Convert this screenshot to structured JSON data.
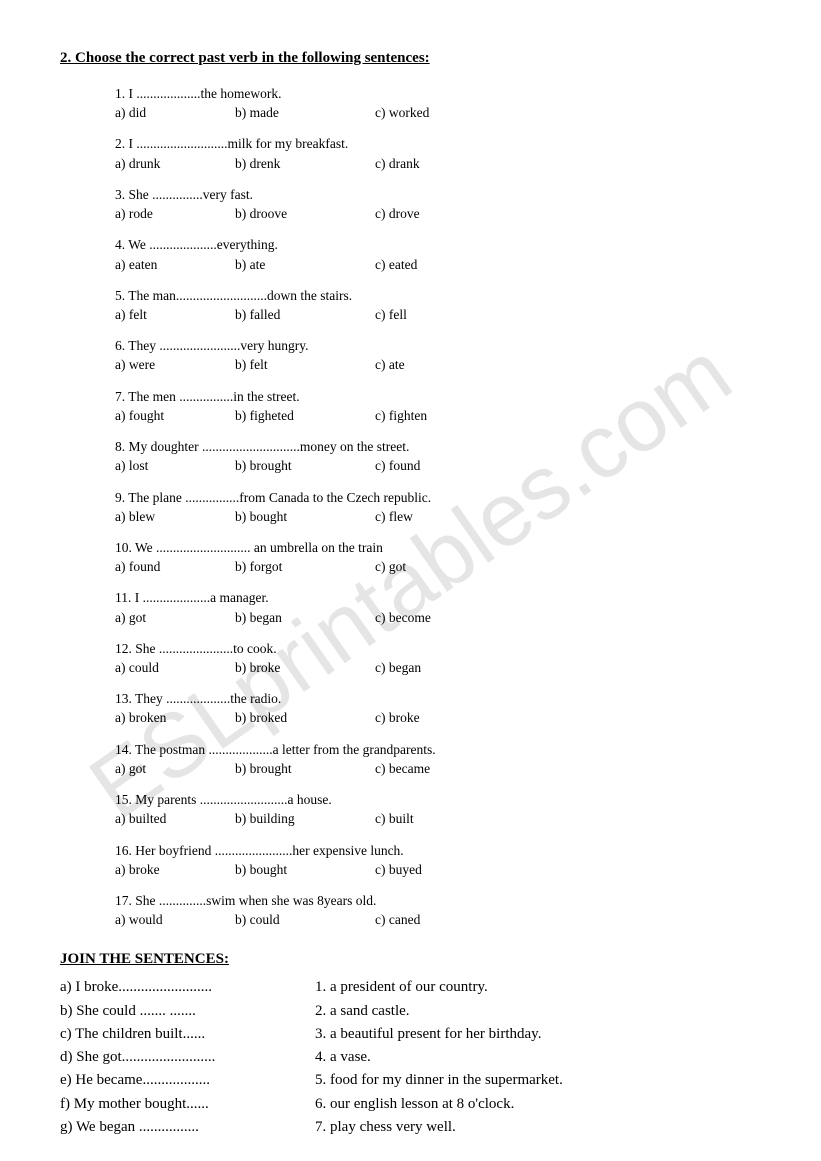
{
  "title": "2. Choose the correct past verb in the following sentences:",
  "questions": [
    {
      "s": "1. I ...................the homework.",
      "a": "a) did",
      "b": "b) made",
      "c": "c) worked"
    },
    {
      "s": "2. I ...........................milk for my breakfast.",
      "a": "a) drunk",
      "b": "b) drenk",
      "c": "c) drank"
    },
    {
      "s": "3. She ...............very fast.",
      "a": "a) rode",
      "b": "b) droove",
      "c": "c) drove"
    },
    {
      "s": "4. We ....................everything.",
      "a": "a) eaten",
      "b": "b) ate",
      "c": "c) eated"
    },
    {
      "s": "5. The man...........................down the stairs.",
      "a": "a) felt",
      "b": "b) falled",
      "c": "c) fell"
    },
    {
      "s": "6. They ........................very hungry.",
      "a": "a) were",
      "b": "b) felt",
      "c": "c) ate"
    },
    {
      "s": "7. The men ................in the street.",
      "a": "a) fought",
      "b": "b) figheted",
      "c": "c) fighten"
    },
    {
      "s": "8. My doughter .............................money on the street.",
      "a": "a) lost",
      "b": "b) brought",
      "c": "c) found"
    },
    {
      "s": "9. The plane ................from Canada to the Czech republic.",
      "a": "a) blew",
      "b": "b) bought",
      "c": "c) flew"
    },
    {
      "s": "10. We ............................ an umbrella on the train",
      "a": "a) found",
      "b": "b) forgot",
      "c": "c) got"
    },
    {
      "s": "11. I ....................a manager.",
      "a": "a) got",
      "b": "b) began",
      "c": "c) become"
    },
    {
      "s": "12. She ......................to cook.",
      "a": "a) could",
      "b": "b) broke",
      "c": "c) began"
    },
    {
      "s": "13. They ...................the radio.",
      "a": "a) broken",
      "b": "b) broked",
      "c": "c) broke"
    },
    {
      "s": "14. The postman ...................a letter from the grandparents.",
      "a": "a) got",
      "b": "b) brought",
      "c": "c) became"
    },
    {
      "s": "15. My parents ..........................a house.",
      "a": "a) builted",
      "b": "b) building",
      "c": "c) built"
    },
    {
      "s": "16. Her boyfriend .......................her expensive lunch.",
      "a": "a) broke",
      "b": "b) bought",
      "c": "c) buyed"
    },
    {
      "s": "17. She ..............swim when she was 8years old.",
      "a": "a) would",
      "b": "b) could",
      "c": "c) caned"
    }
  ],
  "subtitle": "JOIN THE SENTENCES:",
  "join": [
    {
      "l": "a) I broke.........................",
      "r": "1. a president of our country."
    },
    {
      "l": "b) She could   ....... .......",
      "r": "2. a sand castle."
    },
    {
      "l": "c) The children built......",
      "r": "3. a beautiful present for her birthday."
    },
    {
      "l": "d) She got.........................",
      "r": "4. a vase."
    },
    {
      "l": "e) He became..................",
      "r": "5. food for my dinner in the supermarket."
    },
    {
      "l": "f) My mother bought......",
      "r": "6. our english lesson at 8 o'clock."
    },
    {
      "l": "g) We began   ................",
      "r": "7. play chess very well."
    }
  ],
  "watermark": "ESLprintables.com",
  "style": {
    "page_bg": "#ffffff",
    "text_color": "#000000",
    "watermark_color": "rgba(180,180,180,0.35)",
    "font_family": "Times New Roman",
    "title_fontsize": 15,
    "body_fontsize": 13.5,
    "join_fontsize": 15,
    "watermark_fontsize": 90,
    "watermark_rotation_deg": -35
  }
}
